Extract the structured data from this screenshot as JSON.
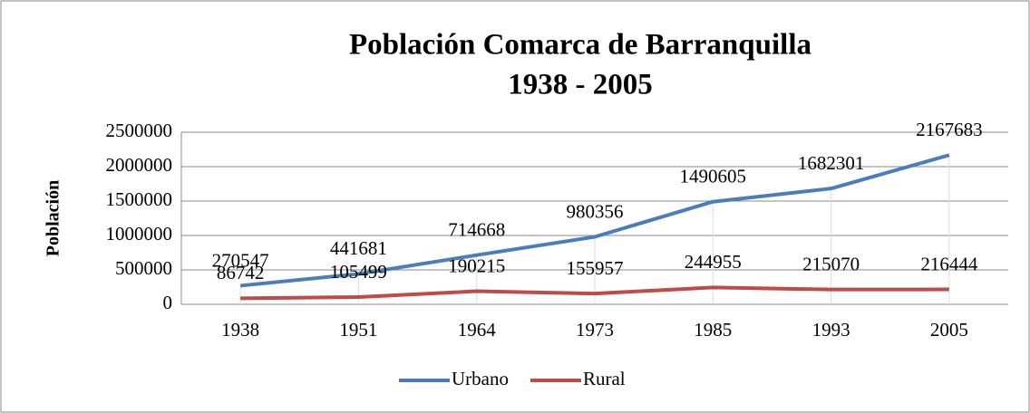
{
  "chart_data": {
    "type": "line",
    "title": [
      "Población Comarca de Barranquilla",
      "1938 - 2005"
    ],
    "y_label": "Población",
    "categories": [
      "1938",
      "1951",
      "1964",
      "1973",
      "1985",
      "1993",
      "2005"
    ],
    "series": [
      {
        "name": "Urbano",
        "color": "#4a7ebb",
        "values": [
          270547,
          441681,
          714668,
          980356,
          1490605,
          1682301,
          2167683
        ]
      },
      {
        "name": "Rural",
        "color": "#be4b48",
        "values": [
          86742,
          105499,
          190215,
          155957,
          244955,
          215070,
          216444
        ]
      }
    ],
    "ylim": [
      0,
      2500000
    ],
    "yticks": [
      0,
      500000,
      1000000,
      1500000,
      2000000,
      2500000
    ],
    "grid": true,
    "legend": "bottom"
  }
}
